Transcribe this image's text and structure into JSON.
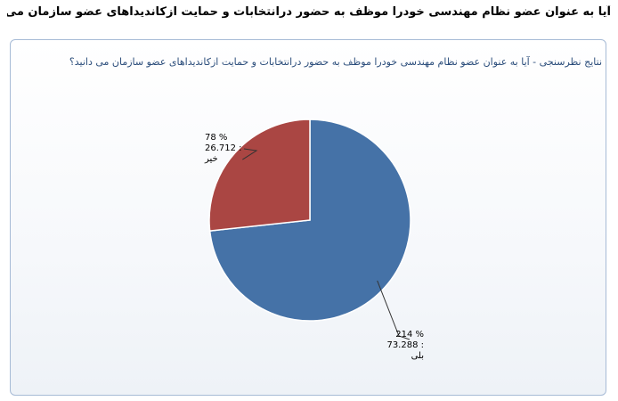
{
  "question": "آیا به عنوان عضو نظام مهندسی خودرا موظف به حضور درانتخابات و حمایت ازکاندیداهای عضو سازمان می دانید؟",
  "chart_data": {
    "type": "pie",
    "title": "نتایج نظرسنجی - آیا به عنوان عضو نظام مهندسی خودرا موظف به حضور درانتخابات و حمایت ازکاندیداهای عضو سازمان می دانید؟",
    "slices": [
      {
        "name": "بلی",
        "count": "214",
        "percent_text": "73.288",
        "value": 73.288,
        "color": "#4572a7"
      },
      {
        "name": "خیر",
        "count": "78",
        "percent_text": "26.712",
        "value": 26.712,
        "color": "#aa4643"
      }
    ]
  }
}
